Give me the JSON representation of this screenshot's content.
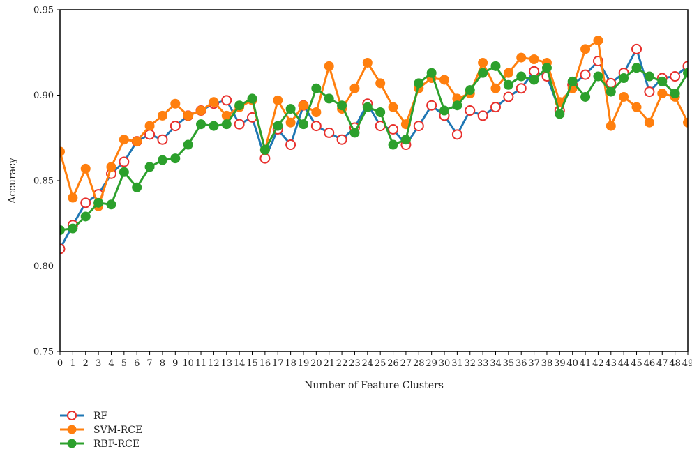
{
  "chart_data": {
    "type": "line",
    "xlabel": "Number of Feature Clusters",
    "ylabel": "Accuracy",
    "xlim": [
      0,
      49
    ],
    "ylim": [
      0.75,
      0.95
    ],
    "yticks": [
      "0.75",
      "0.80",
      "0.85",
      "0.90",
      "0.95"
    ],
    "x": [
      0,
      1,
      2,
      3,
      4,
      5,
      6,
      7,
      8,
      9,
      10,
      11,
      12,
      13,
      14,
      15,
      16,
      17,
      18,
      19,
      20,
      21,
      22,
      23,
      24,
      25,
      26,
      27,
      28,
      29,
      30,
      31,
      32,
      33,
      34,
      35,
      36,
      37,
      38,
      39,
      40,
      41,
      42,
      43,
      44,
      45,
      46,
      47,
      48,
      49
    ],
    "grid": false,
    "legend_position": "bottom-left",
    "series": [
      {
        "name": "RF",
        "color": "#1f77b4",
        "marker": "open-circle-red",
        "values": [
          0.81,
          0.824,
          0.837,
          0.842,
          0.854,
          0.861,
          0.873,
          0.877,
          0.874,
          0.882,
          0.888,
          0.891,
          0.895,
          0.897,
          0.883,
          0.887,
          0.863,
          0.88,
          0.871,
          0.894,
          0.882,
          0.878,
          0.874,
          0.881,
          0.895,
          0.882,
          0.88,
          0.871,
          0.882,
          0.894,
          0.888,
          0.877,
          0.891,
          0.888,
          0.893,
          0.899,
          0.904,
          0.914,
          0.911,
          0.891,
          0.906,
          0.912,
          0.92,
          0.907,
          0.913,
          0.927,
          0.902,
          0.91,
          0.911,
          0.917
        ]
      },
      {
        "name": "SVM-RCE",
        "color": "#ff7f0e",
        "marker": "filled-circle",
        "values": [
          0.867,
          0.84,
          0.857,
          0.835,
          0.858,
          0.874,
          0.873,
          0.882,
          0.888,
          0.895,
          0.888,
          0.891,
          0.896,
          0.888,
          0.893,
          0.897,
          0.868,
          0.897,
          0.884,
          0.894,
          0.89,
          0.917,
          0.892,
          0.904,
          0.919,
          0.907,
          0.893,
          0.883,
          0.904,
          0.91,
          0.909,
          0.898,
          0.901,
          0.919,
          0.904,
          0.913,
          0.922,
          0.921,
          0.919,
          0.896,
          0.904,
          0.927,
          0.932,
          0.882,
          0.899,
          0.893,
          0.884,
          0.901,
          0.899,
          0.884
        ]
      },
      {
        "name": "RBF-RCE",
        "color": "#2ca02c",
        "marker": "filled-circle",
        "values": [
          0.821,
          0.822,
          0.829,
          0.837,
          0.836,
          0.855,
          0.846,
          0.858,
          0.862,
          0.863,
          0.871,
          0.883,
          0.882,
          0.883,
          0.894,
          0.898,
          0.868,
          0.882,
          0.892,
          0.883,
          0.904,
          0.898,
          0.894,
          0.878,
          0.893,
          0.89,
          0.871,
          0.874,
          0.907,
          0.913,
          0.891,
          0.894,
          0.903,
          0.913,
          0.917,
          0.906,
          0.911,
          0.909,
          0.916,
          0.889,
          0.908,
          0.899,
          0.911,
          0.902,
          0.91,
          0.916,
          0.911,
          0.908,
          0.901,
          0.913
        ]
      }
    ]
  }
}
